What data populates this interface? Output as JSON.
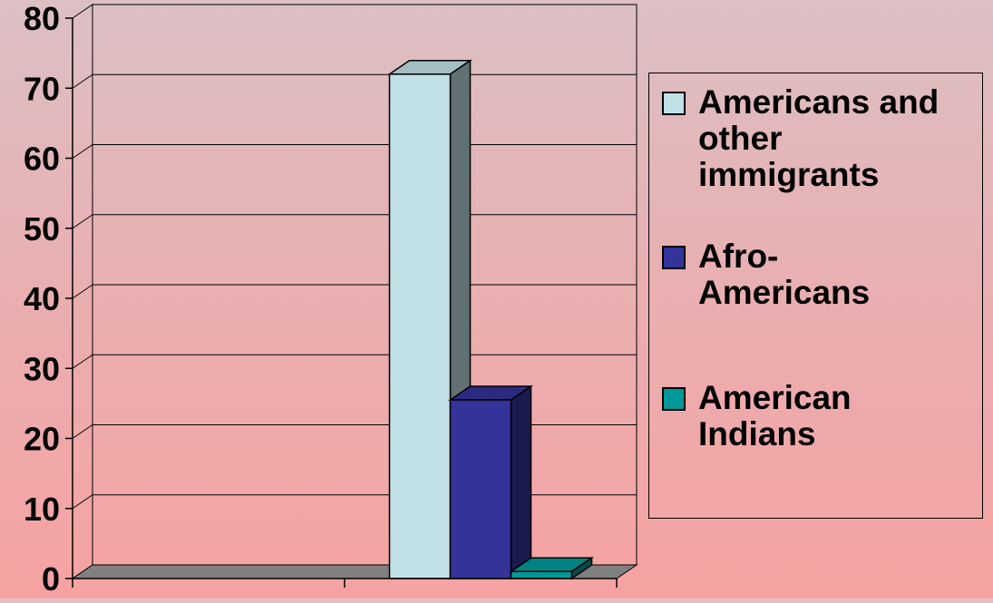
{
  "chart_data": {
    "type": "bar",
    "categories": [
      "",
      ""
    ],
    "series": [
      {
        "name": "Americans and other immigrants",
        "values": [
          0,
          72
        ],
        "color": "#c1e0e6"
      },
      {
        "name": "Afro-Americans",
        "values": [
          0,
          25.5
        ],
        "color": "#333399"
      },
      {
        "name": "American Indians",
        "values": [
          0,
          1
        ],
        "color": "#009999"
      }
    ],
    "ylim": [
      0,
      80
    ],
    "yticks": [
      "0",
      "10",
      "20",
      "30",
      "40",
      "50",
      "60",
      "70",
      "80"
    ],
    "title": "",
    "xlabel": "",
    "ylabel": "",
    "grid": true,
    "three_d": true,
    "legend_position": "right"
  }
}
